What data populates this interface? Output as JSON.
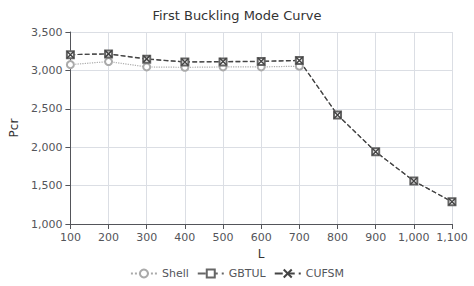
{
  "chart_data": {
    "type": "line",
    "title": "First Buckling Mode Curve",
    "xlabel": "L",
    "ylabel": "Pcr",
    "x": [
      100,
      200,
      300,
      400,
      500,
      600,
      700,
      800,
      900,
      1000,
      1100
    ],
    "series": [
      {
        "name": "Shell",
        "color": "#aaaaaa",
        "marker": "circle",
        "line_style": "dotted",
        "values": [
          3075,
          3115,
          3045,
          3040,
          3045,
          3045,
          3055,
          null,
          null,
          null,
          null
        ]
      },
      {
        "name": "GBTUL",
        "color": "#666666",
        "marker": "square",
        "line_style": "dashed",
        "values": [
          3205,
          3215,
          3145,
          3110,
          3110,
          3115,
          3130,
          2420,
          1940,
          1560,
          1290
        ]
      },
      {
        "name": "CUFSM",
        "color": "#444444",
        "marker": "x",
        "line_style": "dashed",
        "values": [
          3205,
          3215,
          3150,
          3110,
          3115,
          3120,
          3130,
          2420,
          1940,
          1560,
          1290
        ]
      }
    ],
    "xlim": [
      100,
      1100
    ],
    "xticks": [
      100,
      200,
      300,
      400,
      500,
      600,
      700,
      800,
      900,
      1000,
      1100
    ],
    "ylim": [
      1000,
      3500
    ],
    "yticks": [
      1000,
      1500,
      2000,
      2500,
      3000,
      3500
    ],
    "grid": true,
    "legend": "bottom"
  }
}
